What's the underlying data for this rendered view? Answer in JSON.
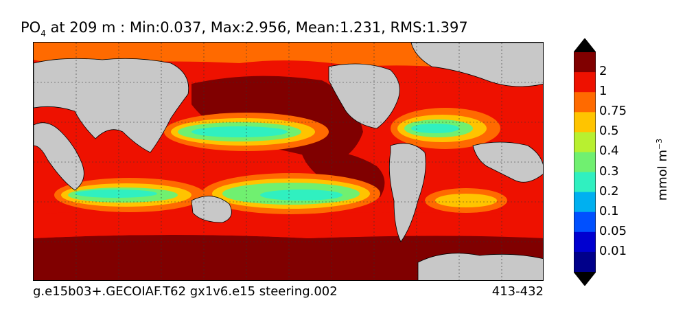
{
  "title": {
    "var_main": "PO",
    "var_sub": "4",
    "rest": " at 209 m : Min:0.037, Max:2.956, Mean:1.231, RMS:1.397"
  },
  "footer": {
    "run": "g.e15b03+.GECOIAF.T62 gx1v6.e15 steering.002",
    "years": "413-432"
  },
  "colorbar": {
    "units_main": "mmol m",
    "units_exp": "−3",
    "labels": [
      "2",
      "1",
      "0.75",
      "0.5",
      "0.4",
      "0.3",
      "0.2",
      "0.1",
      "0.05",
      "0.01"
    ],
    "colors": [
      "#800000",
      "#ee1100",
      "#ff6a00",
      "#ffc400",
      "#b8f030",
      "#70f070",
      "#30f0c0",
      "#00b0f0",
      "#0050ff",
      "#0000d0",
      "#00008a"
    ]
  }
}
